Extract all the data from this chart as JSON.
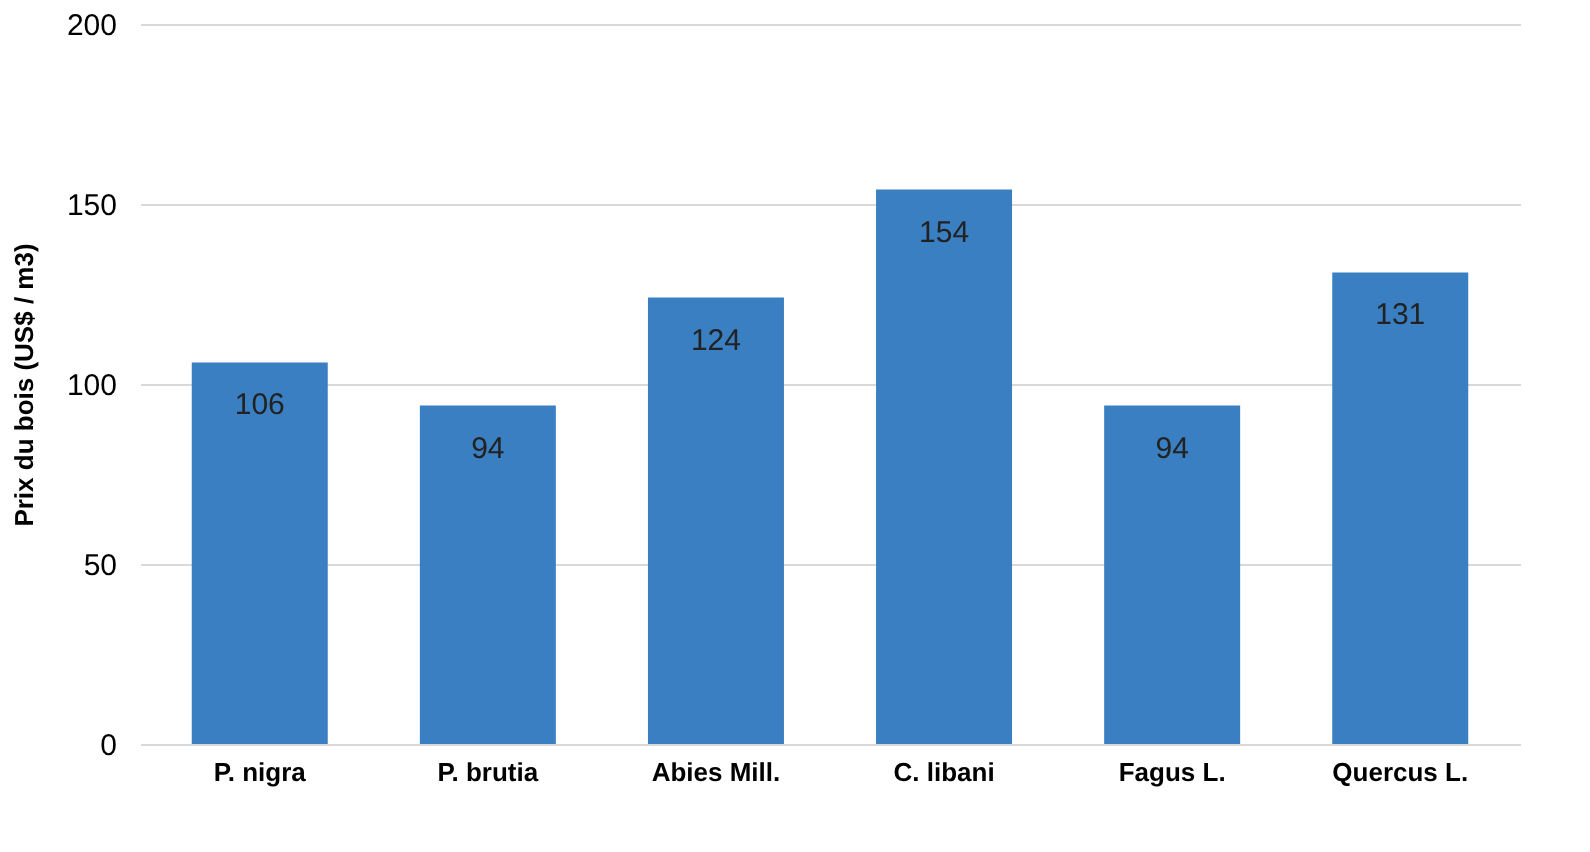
{
  "chart_data": {
    "type": "bar",
    "categories": [
      "P. nigra",
      "P. brutia",
      "Abies Mill.",
      "C. libani",
      "Fagus L.",
      "Quercus L."
    ],
    "values": [
      106,
      94,
      124,
      154,
      94,
      131
    ],
    "color": "#3a7fc1",
    "ylabel": "Prix du bois (US$ / m3)",
    "ylim": [
      0,
      200
    ],
    "yticks": [
      0,
      50,
      100,
      150,
      200
    ],
    "grid": "y",
    "data_labels": true
  }
}
